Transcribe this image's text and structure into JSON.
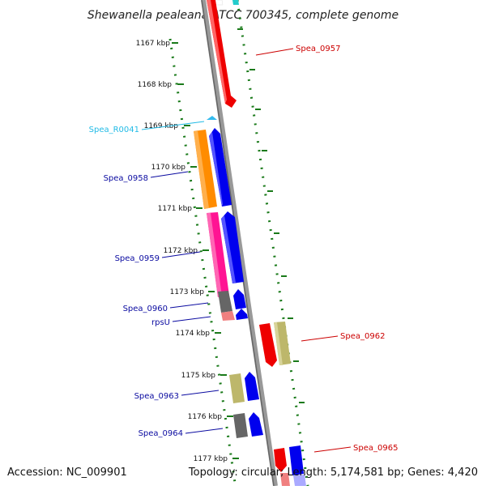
{
  "title": "Shewanella pealeana ATCC 700345, complete genome",
  "footer": {
    "accession": "Accession: NC_009901",
    "summary": "Topology: circular; Length: 5,174,581 bp; Genes: 4,420"
  },
  "ticks": [
    "1167 kbp",
    "1168 kbp",
    "1169 kbp",
    "1170 kbp",
    "1171 kbp",
    "1172 kbp",
    "1173 kbp",
    "1174 kbp",
    "1175 kbp",
    "1176 kbp",
    "1177 kbp"
  ],
  "labels": [
    {
      "text": "Spea_0957",
      "color": "#cc0000"
    },
    {
      "text": "Spea_R0041",
      "color": "#22bbe6"
    },
    {
      "text": "Spea_0958",
      "color": "#0a0aa0"
    },
    {
      "text": "Spea_0959",
      "color": "#0a0aa0"
    },
    {
      "text": "Spea_0960",
      "color": "#0a0aa0"
    },
    {
      "text": "rpsU",
      "color": "#0a0aa0"
    },
    {
      "text": "Spea_0962",
      "color": "#cc0000"
    },
    {
      "text": "Spea_0963",
      "color": "#0a0aa0"
    },
    {
      "text": "Spea_0964",
      "color": "#0a0aa0"
    },
    {
      "text": "Spea_0965",
      "color": "#cc0000"
    }
  ],
  "colors": {
    "backbone": "#888888",
    "tick_green": "#1a7a1a",
    "forward_cds": "#0000ee",
    "reverse_cds": "#ee0000",
    "rna": "#33bbee",
    "orange_gene": "#ff8c00",
    "pink_gene": "#ff1493",
    "gray_gene": "#666666",
    "khaki_gene": "#bdb76b",
    "salmon_gene": "#f08080"
  }
}
